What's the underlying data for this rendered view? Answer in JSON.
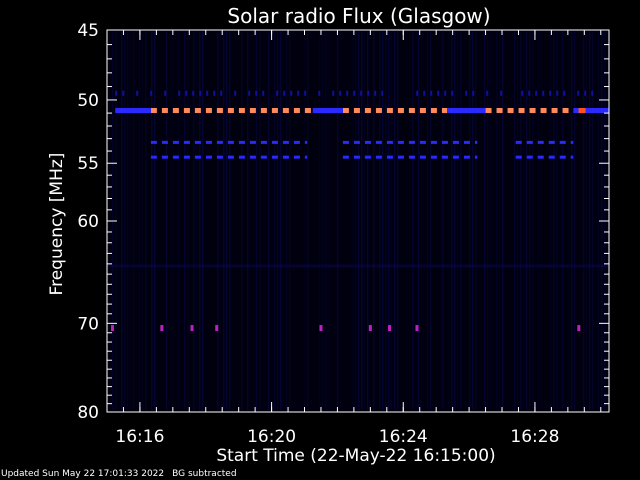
{
  "chart_data": {
    "type": "heatmap",
    "title": "Solar radio Flux (Glasgow)",
    "xlabel": "Start Time (22-May-22 16:15:00)",
    "ylabel": "Frequency [MHz]",
    "ylim": [
      45,
      80
    ],
    "y_scale": "log",
    "y_ticks": [
      45,
      50,
      55,
      60,
      70,
      80
    ],
    "y_tick_labels": [
      "45",
      "50",
      "55",
      "60",
      "70",
      "80"
    ],
    "xlim": [
      "16:15:00",
      "16:30:15"
    ],
    "x_ticks": [
      "16:16",
      "16:20",
      "16:24",
      "16:28"
    ],
    "x_tick_labels": [
      "16:16",
      "16:20",
      "16:24",
      "16:28"
    ],
    "colors": {
      "background": "#000000",
      "plot_background": "#00000f",
      "low_intensity": "#1010a0",
      "mid_intensity": "#2a2aff",
      "high_intensity": "#ff8a5a",
      "very_high_intensity": "#ff5020",
      "spike": "#c020c0",
      "axis": "#ffffff"
    },
    "bands": [
      {
        "freq": 49.5,
        "intensity": "low",
        "pattern": "intermittent",
        "segments": [
          [
            "16:15:15",
            "16:30:15"
          ]
        ]
      },
      {
        "freq": 50.8,
        "intensity": "high",
        "pattern": "dashed",
        "segments": [
          [
            "16:16:20",
            "16:21:15"
          ],
          [
            "16:22:10",
            "16:25:20"
          ],
          [
            "16:26:30",
            "16:29:10"
          ]
        ]
      },
      {
        "freq": 50.8,
        "intensity": "mid",
        "pattern": "solid",
        "segments": [
          [
            "16:15:15",
            "16:16:20"
          ],
          [
            "16:21:15",
            "16:22:10"
          ],
          [
            "16:25:20",
            "16:26:30"
          ],
          [
            "16:29:10",
            "16:30:15"
          ]
        ]
      },
      {
        "freq": 53.3,
        "intensity": "mid",
        "pattern": "dashed",
        "segments": [
          [
            "16:16:20",
            "16:21:05"
          ],
          [
            "16:22:10",
            "16:26:15"
          ],
          [
            "16:27:25",
            "16:29:10"
          ]
        ]
      },
      {
        "freq": 54.5,
        "intensity": "mid",
        "pattern": "dashed",
        "segments": [
          [
            "16:16:20",
            "16:21:05"
          ],
          [
            "16:22:10",
            "16:26:15"
          ],
          [
            "16:27:25",
            "16:29:10"
          ]
        ]
      },
      {
        "freq": 70.5,
        "intensity": "spike",
        "pattern": "points",
        "times": [
          "16:15:10",
          "16:16:40",
          "16:17:35",
          "16:18:20",
          "16:21:30",
          "16:23:00",
          "16:23:35",
          "16:24:25",
          "16:29:20"
        ]
      }
    ]
  },
  "footer": {
    "updated": "Updated Sun May 22 17:01:33 2022",
    "note": "BG subtracted"
  }
}
